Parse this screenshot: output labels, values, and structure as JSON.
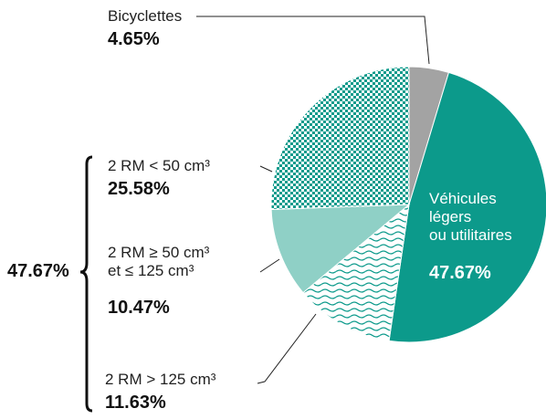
{
  "chart_data": {
    "type": "pie",
    "categories": [
      "Bicyclettes",
      "Véhicules\nlégers\nou utilitaires",
      "2 RM > 125 cm³",
      "2 RM ≥ 50 cm³\net ≤ 125 cm³",
      "2 RM < 50 cm³"
    ],
    "values": [
      4.65,
      47.67,
      11.63,
      10.47,
      25.58
    ],
    "value_labels": [
      "4.65%",
      "47.67%",
      "11.63%",
      "10.47%",
      "25.58%"
    ],
    "colors": [
      "#a3a3a3",
      "#0c9a8b",
      "#0c9a8b",
      "#8fd0c6",
      "#0c9a8b"
    ],
    "annotation": "47.67%"
  }
}
